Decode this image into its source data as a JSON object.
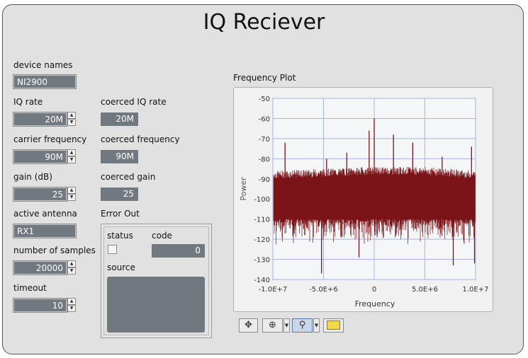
{
  "title": "IQ Reciever",
  "device_names": {
    "label": "device names",
    "value": "NI2900"
  },
  "iq_rate": {
    "label": "IQ rate",
    "value": "20M"
  },
  "carrier_frequency": {
    "label": "carrier frequency",
    "value": "90M"
  },
  "gain": {
    "label": "gain (dB)",
    "value": "25"
  },
  "active_antenna": {
    "label": "active antenna",
    "value": "RX1"
  },
  "number_of_samples": {
    "label": "number of samples",
    "value": "20000"
  },
  "timeout": {
    "label": "timeout",
    "value": "10"
  },
  "coerced_iq_rate": {
    "label": "coerced IQ rate",
    "value": "20M"
  },
  "coerced_frequency": {
    "label": "coerced frequency",
    "value": "90M"
  },
  "coerced_gain": {
    "label": "coerced gain",
    "value": "25"
  },
  "error_out": {
    "label": "Error Out",
    "status_label": "status",
    "code_label": "code",
    "code_value": "0",
    "source_label": "source",
    "source_value": ""
  },
  "plot": {
    "label": "Frequency Plot",
    "xlabel": "Frequency",
    "ylabel": "Power",
    "x_ticks": [
      "-1.0E+7",
      "-5.0E+6",
      "0",
      "5.0E+6",
      "1.0E+7"
    ],
    "y_ticks": [
      "-50",
      "-60",
      "-70",
      "-80",
      "-90",
      "-100",
      "-110",
      "-120",
      "-130",
      "-140"
    ]
  },
  "chart_data": {
    "type": "area",
    "xlabel": "Frequency",
    "ylabel": "Power",
    "xlim": [
      -10000000,
      10000000
    ],
    "ylim": [
      -140,
      -50
    ],
    "grid": true,
    "series_color": "#7a1419",
    "x": [
      -10000000,
      -5000000,
      0,
      5000000,
      10000000
    ],
    "upper_envelope": [
      -88,
      -87,
      -86,
      -86,
      -88
    ],
    "lower_envelope": [
      -110,
      -110,
      -110,
      -110,
      -110
    ],
    "peaks": [
      {
        "x": -8800000,
        "y": -72
      },
      {
        "x": -4700000,
        "y": -80
      },
      {
        "x": -2700000,
        "y": -77
      },
      {
        "x": -500000,
        "y": -66
      },
      {
        "x": 0,
        "y": -60
      },
      {
        "x": 1900000,
        "y": -68
      },
      {
        "x": 3800000,
        "y": -72
      },
      {
        "x": 6700000,
        "y": -79
      },
      {
        "x": 9600000,
        "y": -74
      }
    ],
    "dips": [
      {
        "x": -5200000,
        "y": -137
      },
      {
        "x": -1500000,
        "y": -129
      },
      {
        "x": 7800000,
        "y": -133
      },
      {
        "x": 9900000,
        "y": -132
      }
    ]
  },
  "toolbar": {
    "cursor_icon": "crosshair-icon",
    "pan_icon": "pan-icon",
    "zoom_icon": "zoom-icon",
    "palette_icon": "palette-icon"
  }
}
